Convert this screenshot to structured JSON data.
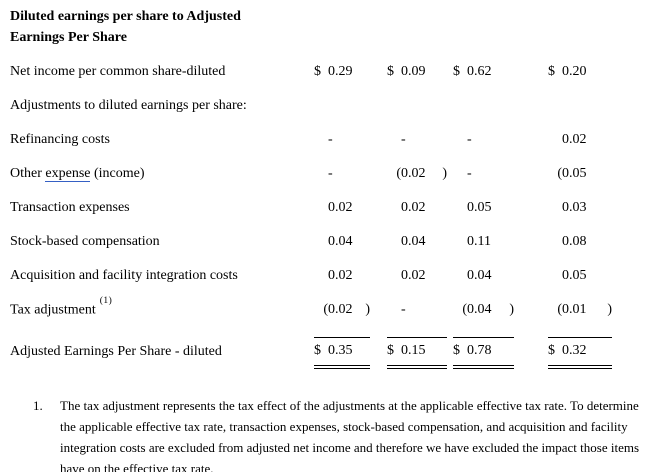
{
  "colors": {
    "link_underline": "#3560c4",
    "text": "#000000",
    "background": "#ffffff"
  },
  "title": {
    "line1": "Diluted earnings per share to Adjusted",
    "line2": "Earnings Per Share"
  },
  "rows": [
    {
      "label": "Net income per common share-diluted",
      "cells": [
        {
          "sym": "$",
          "val": "0.29",
          "close": ""
        },
        {
          "sym": "$",
          "val": "0.09",
          "close": ""
        },
        {
          "sym": "$",
          "val": "0.62",
          "close": ""
        },
        {
          "sym": "$",
          "val": "0.20",
          "close": ""
        }
      ]
    },
    {
      "label": "Adjustments to diluted earnings per share:",
      "cells": [
        {
          "sym": "",
          "val": "",
          "close": ""
        },
        {
          "sym": "",
          "val": "",
          "close": ""
        },
        {
          "sym": "",
          "val": "",
          "close": ""
        },
        {
          "sym": "",
          "val": "",
          "close": ""
        }
      ]
    },
    {
      "label": "Refinancing costs",
      "cells": [
        {
          "sym": "",
          "val": "-",
          "close": ""
        },
        {
          "sym": "",
          "val": "-",
          "close": ""
        },
        {
          "sym": "",
          "val": "-",
          "close": ""
        },
        {
          "sym": "",
          "val": "0.02",
          "close": ""
        }
      ]
    },
    {
      "label_pre": "Other ",
      "label_link": "expense",
      "label_post": " (income)",
      "cells": [
        {
          "sym": "",
          "val": "-",
          "close": ""
        },
        {
          "sym": "(",
          "val": "0.02",
          "close": ")"
        },
        {
          "sym": "",
          "val": "-",
          "close": ""
        },
        {
          "sym": "(",
          "val": "0.05",
          "close": ""
        }
      ]
    },
    {
      "label": "Transaction expenses",
      "cells": [
        {
          "sym": "",
          "val": "0.02",
          "close": ""
        },
        {
          "sym": "",
          "val": "0.02",
          "close": ""
        },
        {
          "sym": "",
          "val": "0.05",
          "close": ""
        },
        {
          "sym": "",
          "val": "0.03",
          "close": ""
        }
      ]
    },
    {
      "label": "Stock-based compensation",
      "cells": [
        {
          "sym": "",
          "val": "0.04",
          "close": ""
        },
        {
          "sym": "",
          "val": "0.04",
          "close": ""
        },
        {
          "sym": "",
          "val": "0.11",
          "close": ""
        },
        {
          "sym": "",
          "val": "0.08",
          "close": ""
        }
      ]
    },
    {
      "label": "Acquisition and facility integration costs",
      "cells": [
        {
          "sym": "",
          "val": "0.02",
          "close": ""
        },
        {
          "sym": "",
          "val": "0.02",
          "close": ""
        },
        {
          "sym": "",
          "val": "0.04",
          "close": ""
        },
        {
          "sym": "",
          "val": "0.05",
          "close": ""
        }
      ]
    },
    {
      "label": "Tax adjustment",
      "label_sup": "(1)",
      "cells": [
        {
          "sym": "(",
          "val": "0.02",
          "close": ")"
        },
        {
          "sym": "",
          "val": "-",
          "close": ""
        },
        {
          "sym": "(",
          "val": "0.04",
          "close": ")"
        },
        {
          "sym": "(",
          "val": "0.01",
          "close": ")"
        }
      ]
    }
  ],
  "total_row": {
    "label": "Adjusted Earnings Per Share - diluted",
    "cells": [
      {
        "sym": "$",
        "val": "0.35",
        "close": ""
      },
      {
        "sym": "$",
        "val": "0.15",
        "close": ""
      },
      {
        "sym": "$",
        "val": "0.78",
        "close": ""
      },
      {
        "sym": "$",
        "val": "0.32",
        "close": ""
      }
    ]
  },
  "footnote": {
    "number": "1.",
    "text": "The tax adjustment represents the tax effect of the adjustments at the applicable effective tax rate. To determine the applicable effective tax rate, transaction expenses, stock-based compensation, and acquisition and facility integration costs are excluded from adjusted net income and therefore we have excluded the impact those items have on the effective tax rate."
  }
}
